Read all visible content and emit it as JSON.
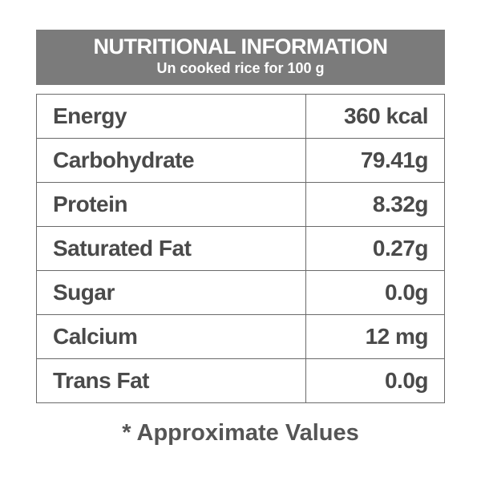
{
  "header": {
    "title": "NUTRITIONAL INFORMATION",
    "subtitle": "Un cooked rice for 100 g"
  },
  "table": {
    "rows": [
      [
        "Energy",
        "360 kcal"
      ],
      [
        "Carbohydrate",
        "79.41g"
      ],
      [
        "Protein",
        "8.32g"
      ],
      [
        "Saturated Fat",
        "0.27g"
      ],
      [
        "Sugar",
        "0.0g"
      ],
      [
        "Calcium",
        "12 mg"
      ],
      [
        "Trans Fat",
        "0.0g"
      ]
    ]
  },
  "footnote": "* Approximate Values"
}
